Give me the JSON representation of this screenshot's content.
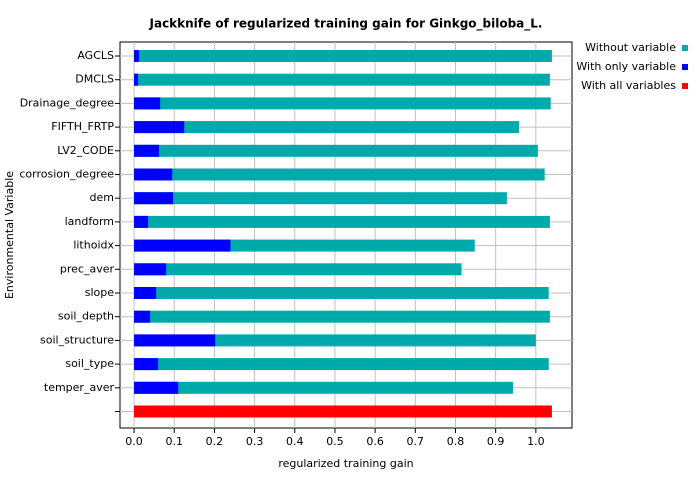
{
  "chart_data": {
    "type": "bar",
    "orientation": "horizontal",
    "title": "Jackknife of regularized training gain for Ginkgo_biloba_L.",
    "x_label": "regularized training gain",
    "y_label": "Environmental Variable",
    "categories": [
      "AGCLS",
      "DMCLS",
      "Drainage_degree",
      "FIFTH_FRTP",
      "LV2_CODE",
      "corrosion_degree",
      "dem",
      "landform",
      "lithoidx",
      "prec_aver",
      "slope",
      "soil_depth",
      "soil_structure",
      "soil_type",
      "temper_aver",
      null
    ],
    "series": [
      {
        "name": "Without variable",
        "color": "#00aaaa",
        "values": [
          1.04,
          1.035,
          1.037,
          0.958,
          1.005,
          1.022,
          0.928,
          1.035,
          0.848,
          0.815,
          1.032,
          1.035,
          1.0,
          1.032,
          0.943,
          null
        ]
      },
      {
        "name": "With only variable",
        "color": "#0000ff",
        "values": [
          0.012,
          0.01,
          0.065,
          0.125,
          0.062,
          0.095,
          0.097,
          0.035,
          0.24,
          0.08,
          0.055,
          0.04,
          0.202,
          0.06,
          0.11,
          null
        ]
      },
      {
        "name": "With all variables",
        "color": "#ff0000",
        "values": [
          null,
          null,
          null,
          null,
          null,
          null,
          null,
          null,
          null,
          null,
          null,
          null,
          null,
          null,
          null,
          1.04
        ]
      }
    ],
    "xlim": [
      -0.035,
      1.09
    ],
    "xticks": [
      {
        "value": 0,
        "label": "0.0"
      },
      0.1,
      0.2,
      0.3,
      0.4,
      0.5,
      0.6,
      0.7,
      0.8,
      0.9,
      {
        "value": 1,
        "label": "1.0"
      }
    ],
    "grid": true,
    "legend": "top-right"
  }
}
